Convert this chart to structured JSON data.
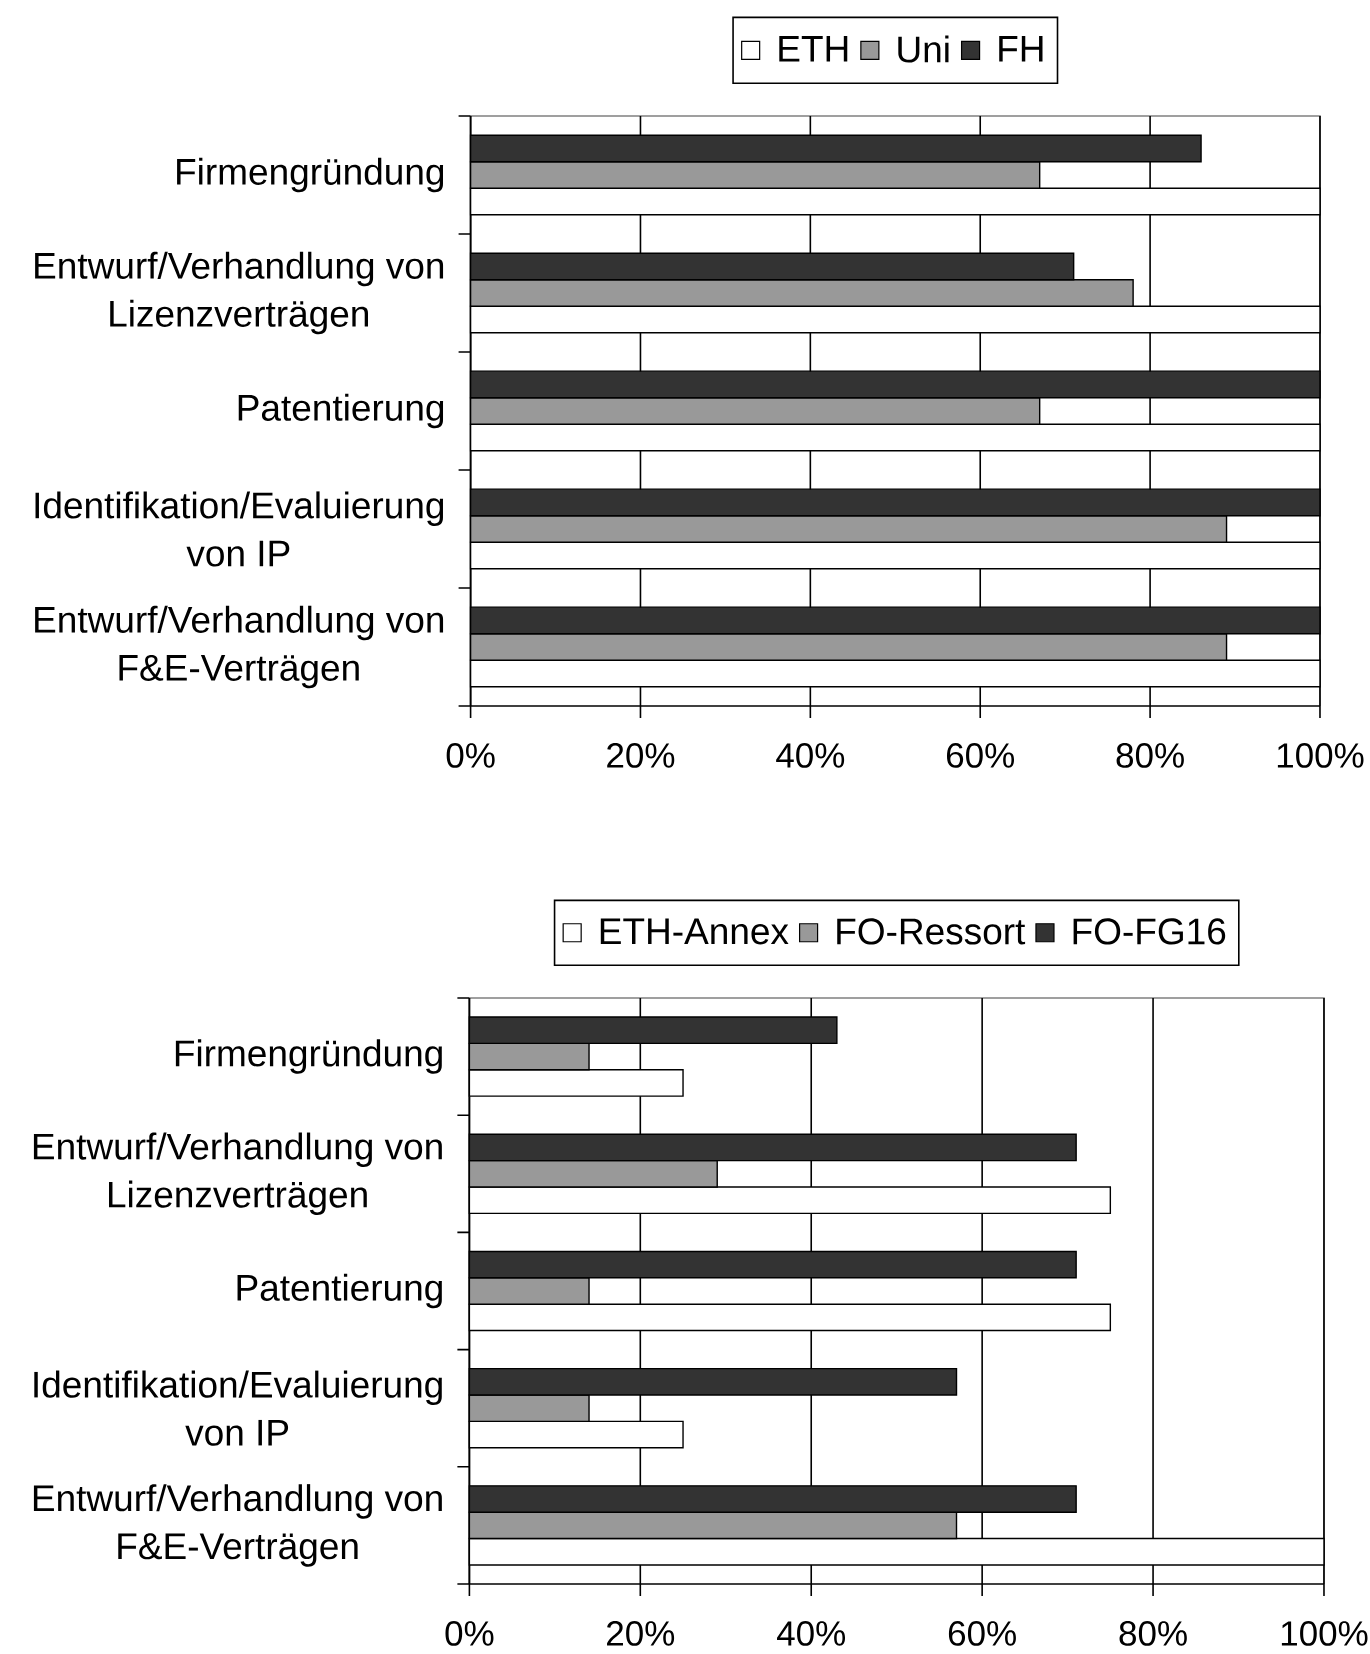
{
  "chart_data": [
    {
      "type": "bar",
      "orientation": "horizontal",
      "legend": "top",
      "grid": "x",
      "categories": [
        "Firmengründung",
        "Entwurf/Verhandlung von Lizenzverträgen",
        "Patentierung",
        "Identifikation/Evaluierung von IP",
        "Entwurf/Verhandlung von F&E-Verträgen"
      ],
      "series": [
        {
          "name": "ETH",
          "color": "#ffffff",
          "values": [
            100,
            100,
            100,
            100,
            100
          ]
        },
        {
          "name": "Uni",
          "color": "#999999",
          "values": [
            67,
            78,
            67,
            89,
            89
          ]
        },
        {
          "name": "FH",
          "color": "#333333",
          "values": [
            86,
            71,
            100,
            100,
            100
          ]
        }
      ],
      "xlim": [
        0,
        100
      ],
      "xticks": [
        {
          "value": 0,
          "label": "0%"
        },
        {
          "value": 20,
          "label": "20%"
        },
        {
          "value": 40,
          "label": "40%"
        },
        {
          "value": 60,
          "label": "60%"
        },
        {
          "value": 80,
          "label": "80%"
        },
        {
          "value": 100,
          "label": "100%"
        }
      ]
    },
    {
      "type": "bar",
      "orientation": "horizontal",
      "legend": "top",
      "grid": "x",
      "categories": [
        "Firmengründung",
        "Entwurf/Verhandlung von Lizenzverträgen",
        "Patentierung",
        "Identifikation/Evaluierung von IP",
        "Entwurf/Verhandlung von F&E-Verträgen"
      ],
      "series": [
        {
          "name": "ETH-Annex",
          "color": "#ffffff",
          "values": [
            25,
            75,
            75,
            25,
            100
          ]
        },
        {
          "name": "FO-Ressort",
          "color": "#999999",
          "values": [
            14,
            29,
            14,
            14,
            57
          ]
        },
        {
          "name": "FO-FG16",
          "color": "#333333",
          "values": [
            43,
            71,
            71,
            57,
            71
          ]
        }
      ],
      "xlim": [
        0,
        100
      ],
      "xticks": [
        {
          "value": 0,
          "label": "0%"
        },
        {
          "value": 20,
          "label": "20%"
        },
        {
          "value": 40,
          "label": "40%"
        },
        {
          "value": 60,
          "label": "60%"
        },
        {
          "value": 80,
          "label": "80%"
        },
        {
          "value": 100,
          "label": "100%"
        }
      ]
    }
  ]
}
